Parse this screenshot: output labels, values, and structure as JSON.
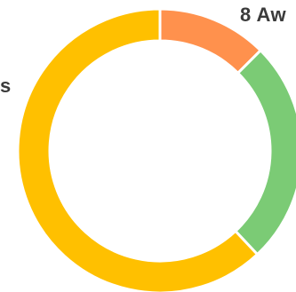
{
  "chart_data": {
    "type": "pie",
    "variant": "donut",
    "slices": [
      {
        "value": 12.5,
        "color": "#FF914D"
      },
      {
        "value": 25.5,
        "color": "#7BCB75"
      },
      {
        "value": 62.0,
        "color": "#FFC000"
      }
    ],
    "visible_labels": {
      "top_right": "8 Aw",
      "left": "s"
    }
  }
}
